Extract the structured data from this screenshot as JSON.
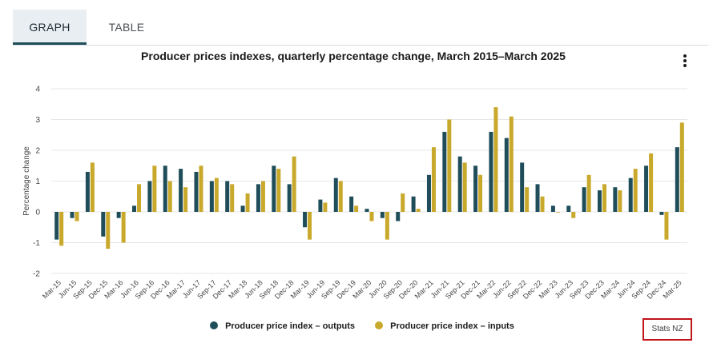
{
  "tabs": [
    {
      "label": "GRAPH",
      "active": true
    },
    {
      "label": "TABLE",
      "active": false
    }
  ],
  "colors": {
    "outputs": "#1f4e5a",
    "inputs": "#c9a92c",
    "grid": "#e6e6e6",
    "axis_text": "#444444",
    "source_border": "#c0131a"
  },
  "source_label": "Stats NZ",
  "menu_icon": "vertical-ellipsis-icon",
  "chart_data": {
    "type": "bar",
    "title": "Producer prices indexes, quarterly percentage change, March 2015–March 2025",
    "xlabel": "",
    "ylabel": "Percentage change",
    "ylim": [
      -2,
      4
    ],
    "yticks": [
      -2,
      -1,
      0,
      1,
      2,
      3,
      4
    ],
    "grid": true,
    "legend_position": "bottom",
    "categories": [
      "Mar-15",
      "Jun-15",
      "Sep-15",
      "Dec-15",
      "Mar-16",
      "Jun-16",
      "Sep-16",
      "Dec-16",
      "Mar-17",
      "Jun-17",
      "Sep-17",
      "Dec-17",
      "Mar-18",
      "Jun-18",
      "Sep-18",
      "Dec-18",
      "Mar-19",
      "Jun-19",
      "Sep-19",
      "Dec-19",
      "Mar-20",
      "Jun-20",
      "Sep-20",
      "Dec-20",
      "Mar-21",
      "Jun-21",
      "Sep-21",
      "Dec-21",
      "Mar-22",
      "Jun-22",
      "Sep-22",
      "Dec-22",
      "Mar-23",
      "Jun-23",
      "Sep-23",
      "Dec-23",
      "Mar-24",
      "Jun-24",
      "Sep-24",
      "Dec-24",
      "Mar-25"
    ],
    "series": [
      {
        "name": "Producer price index – outputs",
        "values": [
          -0.9,
          -0.2,
          1.3,
          -0.8,
          -0.2,
          0.2,
          1.0,
          1.5,
          1.4,
          1.3,
          1.0,
          1.0,
          0.2,
          0.9,
          1.5,
          0.9,
          -0.5,
          0.4,
          1.1,
          0.5,
          0.1,
          -0.2,
          -0.3,
          0.5,
          1.2,
          2.6,
          1.8,
          1.5,
          2.6,
          2.4,
          1.6,
          0.9,
          0.2,
          0.2,
          0.8,
          0.7,
          0.8,
          1.1,
          1.5,
          -0.1,
          2.1
        ]
      },
      {
        "name": "Producer price index – inputs",
        "values": [
          -1.1,
          -0.3,
          1.6,
          -1.2,
          -1.0,
          0.9,
          1.5,
          1.0,
          0.8,
          1.5,
          1.1,
          0.9,
          0.6,
          1.0,
          1.4,
          1.8,
          -0.9,
          0.3,
          1.0,
          0.2,
          -0.3,
          -0.9,
          0.6,
          0.1,
          2.1,
          3.0,
          1.6,
          1.2,
          3.4,
          3.1,
          0.8,
          0.5,
          0.0,
          -0.2,
          1.2,
          0.9,
          0.7,
          1.4,
          1.9,
          -0.9,
          2.9
        ]
      }
    ]
  }
}
